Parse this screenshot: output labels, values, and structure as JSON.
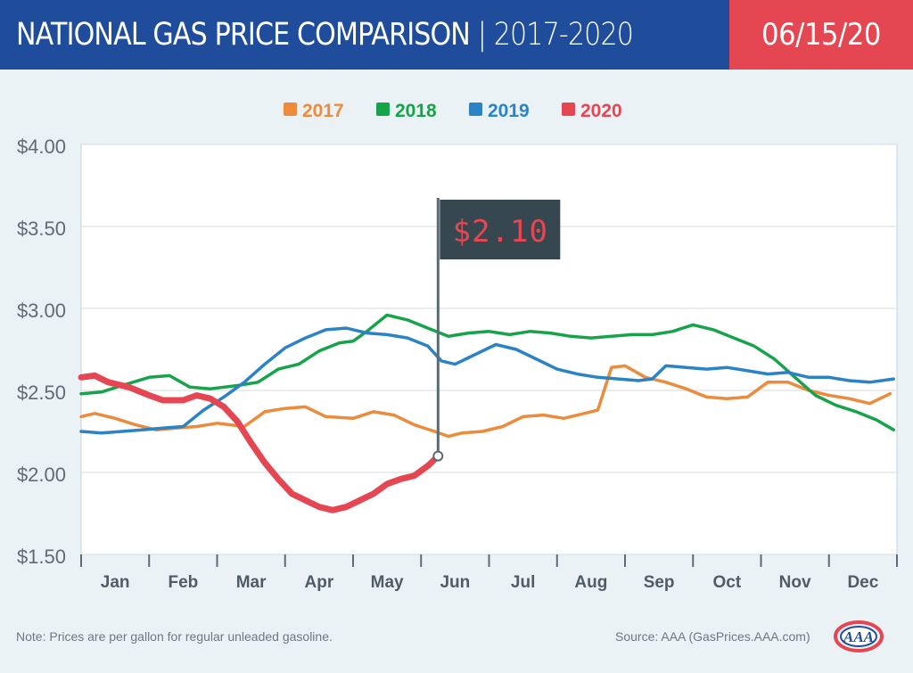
{
  "header": {
    "title": "NATIONAL GAS PRICE COMPARISON",
    "separator": "|",
    "years": "2017-2020",
    "date": "06/15/20"
  },
  "footer": {
    "note": "Note: Prices are per gallon for regular unleaded gasoline.",
    "source": "Source: AAA (GasPrices.AAA.com)",
    "logo_text": "AAA"
  },
  "colors": {
    "header_bg": "#1f4d9b",
    "date_bg": "#e54752",
    "plot_bg": "#ffffff",
    "page_bg": "#ebf2f6",
    "flag_bg": "#37474f",
    "flag_text": "#e54752"
  },
  "chart_data": {
    "type": "line",
    "legend_position": "top-center",
    "grid": true,
    "ylim": [
      1.5,
      4.0
    ],
    "yticks": [
      "$4.00",
      "$3.50",
      "$3.00",
      "$2.50",
      "$2.00",
      "$1.50"
    ],
    "ytick_values": [
      4.0,
      3.5,
      3.0,
      2.5,
      2.0,
      1.5
    ],
    "xlim": [
      1,
      13
    ],
    "categories": [
      "Jan",
      "Feb",
      "Mar",
      "Apr",
      "May",
      "Jun",
      "Jul",
      "Aug",
      "Sep",
      "Oct",
      "Nov",
      "Dec"
    ],
    "annotation": {
      "label": "$2.10",
      "x": 6.25,
      "y": 2.1
    },
    "series": [
      {
        "name": "2017",
        "color": "#ec8b3c",
        "x": [
          1.0,
          1.2,
          1.5,
          1.8,
          2.1,
          2.4,
          2.7,
          3.0,
          3.4,
          3.7,
          4.0,
          4.3,
          4.6,
          5.0,
          5.3,
          5.6,
          5.9,
          6.2,
          6.4,
          6.6,
          6.9,
          7.2,
          7.5,
          7.8,
          8.1,
          8.4,
          8.6,
          8.8,
          9.0,
          9.3,
          9.6,
          9.9,
          10.2,
          10.5,
          10.8,
          11.1,
          11.4,
          11.7,
          12.0,
          12.3,
          12.6,
          12.9
        ],
        "values": [
          2.34,
          2.36,
          2.33,
          2.29,
          2.26,
          2.27,
          2.28,
          2.3,
          2.28,
          2.37,
          2.39,
          2.4,
          2.34,
          2.33,
          2.37,
          2.35,
          2.29,
          2.25,
          2.22,
          2.24,
          2.25,
          2.28,
          2.34,
          2.35,
          2.33,
          2.36,
          2.38,
          2.64,
          2.65,
          2.58,
          2.55,
          2.51,
          2.46,
          2.45,
          2.46,
          2.55,
          2.55,
          2.5,
          2.47,
          2.45,
          2.42,
          2.48
        ]
      },
      {
        "name": "2018",
        "color": "#16a34a",
        "x": [
          1.0,
          1.3,
          1.6,
          2.0,
          2.3,
          2.6,
          2.9,
          3.3,
          3.6,
          3.9,
          4.2,
          4.5,
          4.8,
          5.0,
          5.2,
          5.5,
          5.8,
          6.1,
          6.4,
          6.7,
          7.0,
          7.3,
          7.6,
          7.9,
          8.2,
          8.5,
          8.8,
          9.1,
          9.4,
          9.7,
          10.0,
          10.3,
          10.6,
          10.9,
          11.2,
          11.5,
          11.8,
          12.1,
          12.4,
          12.7,
          12.95
        ],
        "values": [
          2.48,
          2.49,
          2.53,
          2.58,
          2.59,
          2.52,
          2.51,
          2.53,
          2.55,
          2.63,
          2.66,
          2.74,
          2.79,
          2.8,
          2.86,
          2.96,
          2.93,
          2.88,
          2.83,
          2.85,
          2.86,
          2.84,
          2.86,
          2.85,
          2.83,
          2.82,
          2.83,
          2.84,
          2.84,
          2.86,
          2.9,
          2.87,
          2.82,
          2.77,
          2.69,
          2.58,
          2.47,
          2.41,
          2.37,
          2.32,
          2.26
        ]
      },
      {
        "name": "2019",
        "color": "#2b83c6",
        "x": [
          1.0,
          1.3,
          1.6,
          1.9,
          2.2,
          2.5,
          2.8,
          3.1,
          3.4,
          3.7,
          4.0,
          4.3,
          4.6,
          4.9,
          5.2,
          5.5,
          5.8,
          6.1,
          6.3,
          6.5,
          6.8,
          7.1,
          7.4,
          7.7,
          8.0,
          8.3,
          8.6,
          8.9,
          9.2,
          9.4,
          9.6,
          9.9,
          10.2,
          10.5,
          10.8,
          11.1,
          11.4,
          11.7,
          12.0,
          12.3,
          12.6,
          12.95
        ],
        "values": [
          2.25,
          2.24,
          2.25,
          2.26,
          2.27,
          2.28,
          2.38,
          2.46,
          2.55,
          2.66,
          2.76,
          2.82,
          2.87,
          2.88,
          2.85,
          2.84,
          2.82,
          2.77,
          2.68,
          2.66,
          2.72,
          2.78,
          2.75,
          2.69,
          2.63,
          2.6,
          2.58,
          2.57,
          2.56,
          2.57,
          2.65,
          2.64,
          2.63,
          2.64,
          2.62,
          2.6,
          2.61,
          2.58,
          2.58,
          2.56,
          2.55,
          2.57
        ]
      },
      {
        "name": "2020",
        "color": "#e54752",
        "x": [
          1.0,
          1.2,
          1.4,
          1.7,
          2.0,
          2.2,
          2.5,
          2.7,
          2.9,
          3.1,
          3.3,
          3.5,
          3.7,
          3.9,
          4.1,
          4.3,
          4.5,
          4.7,
          4.9,
          5.1,
          5.3,
          5.5,
          5.7,
          5.9,
          6.1,
          6.25
        ],
        "values": [
          2.58,
          2.59,
          2.55,
          2.52,
          2.47,
          2.44,
          2.44,
          2.47,
          2.45,
          2.4,
          2.31,
          2.18,
          2.06,
          1.96,
          1.87,
          1.83,
          1.79,
          1.77,
          1.79,
          1.83,
          1.87,
          1.93,
          1.96,
          1.98,
          2.04,
          2.1
        ]
      }
    ]
  }
}
